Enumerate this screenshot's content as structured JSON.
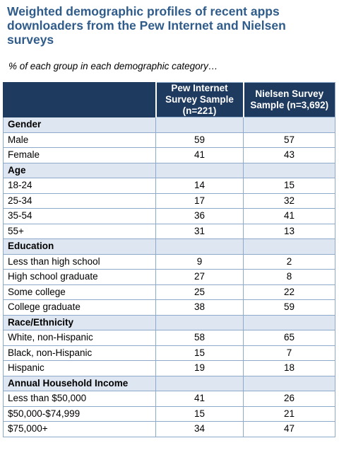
{
  "title": "Weighted demographic profiles of recent apps downloaders from the Pew Internet and Nielsen surveys",
  "subtitle": "% of each group in each demographic category…",
  "table": {
    "columns": [
      "",
      "Pew Internet Survey Sample (n=221)",
      "Nielsen Survey Sample (n=3,692)"
    ],
    "sections": [
      {
        "name": "Gender",
        "rows": [
          {
            "label": "Male",
            "pew": "59",
            "nielsen": "57"
          },
          {
            "label": "Female",
            "pew": "41",
            "nielsen": "43"
          }
        ]
      },
      {
        "name": "Age",
        "rows": [
          {
            "label": "18-24",
            "pew": "14",
            "nielsen": "15"
          },
          {
            "label": "25-34",
            "pew": "17",
            "nielsen": "32"
          },
          {
            "label": "35-54",
            "pew": "36",
            "nielsen": "41"
          },
          {
            "label": "55+",
            "pew": "31",
            "nielsen": "13"
          }
        ]
      },
      {
        "name": "Education",
        "rows": [
          {
            "label": "Less than high school",
            "pew": "9",
            "nielsen": "2"
          },
          {
            "label": "High school graduate",
            "pew": "27",
            "nielsen": "8"
          },
          {
            "label": "Some college",
            "pew": "25",
            "nielsen": "22"
          },
          {
            "label": "College graduate",
            "pew": "38",
            "nielsen": "59"
          }
        ]
      },
      {
        "name": "Race/Ethnicity",
        "rows": [
          {
            "label": "White, non-Hispanic",
            "pew": "58",
            "nielsen": "65"
          },
          {
            "label": "Black, non-Hispanic",
            "pew": "15",
            "nielsen": "7"
          },
          {
            "label": "Hispanic",
            "pew": "19",
            "nielsen": "18"
          }
        ]
      },
      {
        "name": "Annual Household Income",
        "rows": [
          {
            "label": "Less than $50,000",
            "pew": "41",
            "nielsen": "26"
          },
          {
            "label": "$50,000-$74,999",
            "pew": "15",
            "nielsen": "21"
          },
          {
            "label": "$75,000+",
            "pew": "34",
            "nielsen": "47"
          }
        ]
      }
    ]
  }
}
